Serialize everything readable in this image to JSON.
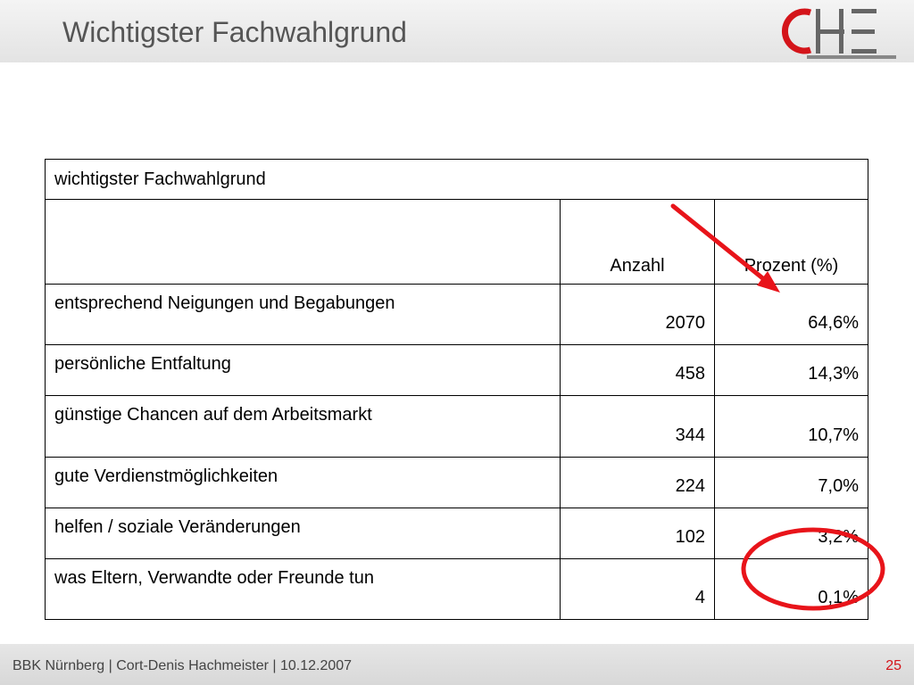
{
  "header": {
    "title": "Wichtigster Fachwahlgrund",
    "logo_text": "CHE"
  },
  "table": {
    "caption": "wichtigster Fachwahlgrund",
    "columns": {
      "label": "",
      "count": "Anzahl",
      "percent": "Prozent (%)"
    },
    "rows": [
      {
        "label": "entsprechend Neigungen und Begabungen",
        "count": "2070",
        "percent": "64,6%"
      },
      {
        "label": "persönliche Entfaltung",
        "count": "458",
        "percent": "14,3%"
      },
      {
        "label": "günstige Chancen auf dem Arbeitsmarkt",
        "count": "344",
        "percent": "10,7%"
      },
      {
        "label": "gute Verdienstmöglichkeiten",
        "count": "224",
        "percent": "7,0%"
      },
      {
        "label": "helfen / soziale Veränderungen",
        "count": "102",
        "percent": "3,2%"
      },
      {
        "label": "was Eltern, Verwandte oder Freunde tun",
        "count": "4",
        "percent": "0,1%"
      }
    ]
  },
  "annotations": {
    "color": "#e8141a"
  },
  "footer": {
    "text": "BBK Nürnberg | Cort-Denis Hachmeister | 10.12.2007",
    "page_number": "25"
  }
}
